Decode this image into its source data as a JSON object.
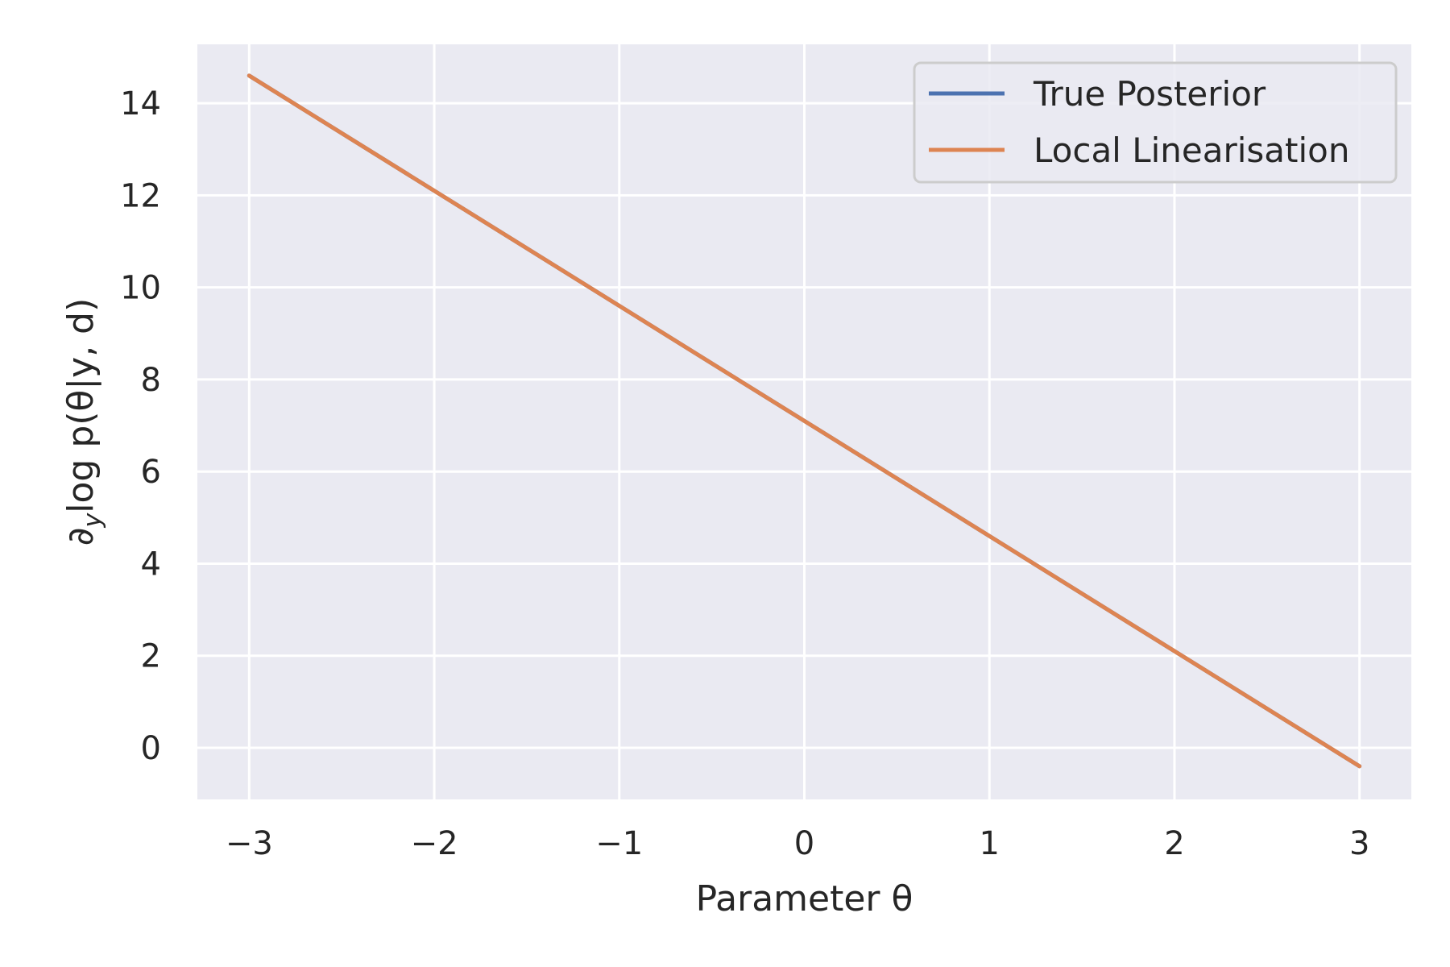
{
  "chart_data": {
    "type": "line",
    "xlabel": "Parameter θ",
    "ylabel": "∂y log p(θ|y, d)",
    "ylabel_parts": {
      "partial": "∂",
      "sub": "y",
      "rest": "log p(θ|y, d)"
    },
    "xlim": [
      -3.28,
      3.28
    ],
    "ylim": [
      -1.12,
      15.28
    ],
    "xticks": [
      -3,
      -2,
      -1,
      0,
      1,
      2,
      3
    ],
    "xtick_labels": [
      "−3",
      "−2",
      "−1",
      "0",
      "1",
      "2",
      "3"
    ],
    "yticks": [
      0,
      2,
      4,
      6,
      8,
      10,
      12,
      14
    ],
    "ytick_labels": [
      "0",
      "2",
      "4",
      "6",
      "8",
      "10",
      "12",
      "14"
    ],
    "grid": true,
    "legend_position": "top-right",
    "series": [
      {
        "name": "True Posterior",
        "color": "#4C72B0",
        "x": [
          -3,
          3
        ],
        "y": [
          14.6,
          -0.4
        ]
      },
      {
        "name": "Local Linearisation",
        "color": "#DD8452",
        "x": [
          -3,
          3
        ],
        "y": [
          14.6,
          -0.4
        ]
      }
    ],
    "colors": {
      "plot_background": "#EAEAF2",
      "grid": "#FFFFFF",
      "text": "#262626"
    }
  }
}
